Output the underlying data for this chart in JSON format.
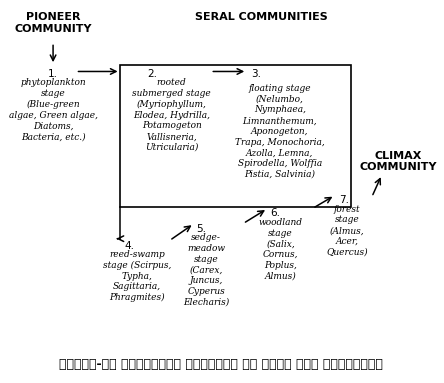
{
  "title": "चित्र-एक जलक्रमकी अनुक्रम की दिशा तथा अवस्थाएँ",
  "background_color": "#ffffff",
  "pioneer_label": "PIONEER\nCOMMUNITY",
  "seral_label": "SERAL COMMUNITIES",
  "climax_label": "CLIMAX\nCOMMUNITY",
  "stage1_num": "1.",
  "stage1_text": "phytoplankton\nstage\n(Blue-green\nalgae, Green algae,\nDiatoms,\nBacteria, etc.)",
  "stage2_num": "2.",
  "stage2_text": "rooted\nsubmerged stage\n(Myriophyllum,\nElodea, Hydrilla,\nPotamogeton\nVallisneria,\nUtricularia)",
  "stage3_num": "3.",
  "stage3_text": "floating stage\n(Nelumbo,\nNymphaea,\nLimnanthemum,\nAponogeton,\nTrapa, Monochoria,\nAzolla, Lemna,\nSpirodella, Wolffia\nPistia, Salvinia)",
  "stage4_num": "4.",
  "stage4_text": "reed-swamp\nstage (Scirpus,\nTypha,\nSagittaria,\nPhragmites)",
  "stage5_num": "5.",
  "stage5_text": "sedge-\nmeadow\nstage\n(Carex,\nJuncus,\nCyperus\nElecharis)",
  "stage6_num": "6.",
  "stage6_text": "woodland\nstage\n(Salix,\nCornus,\nPoplus,\nAlmus)",
  "stage7_num": "7.",
  "stage7_text": "forest\nstage\n(Almus,\nAcer,\nQuercus)"
}
